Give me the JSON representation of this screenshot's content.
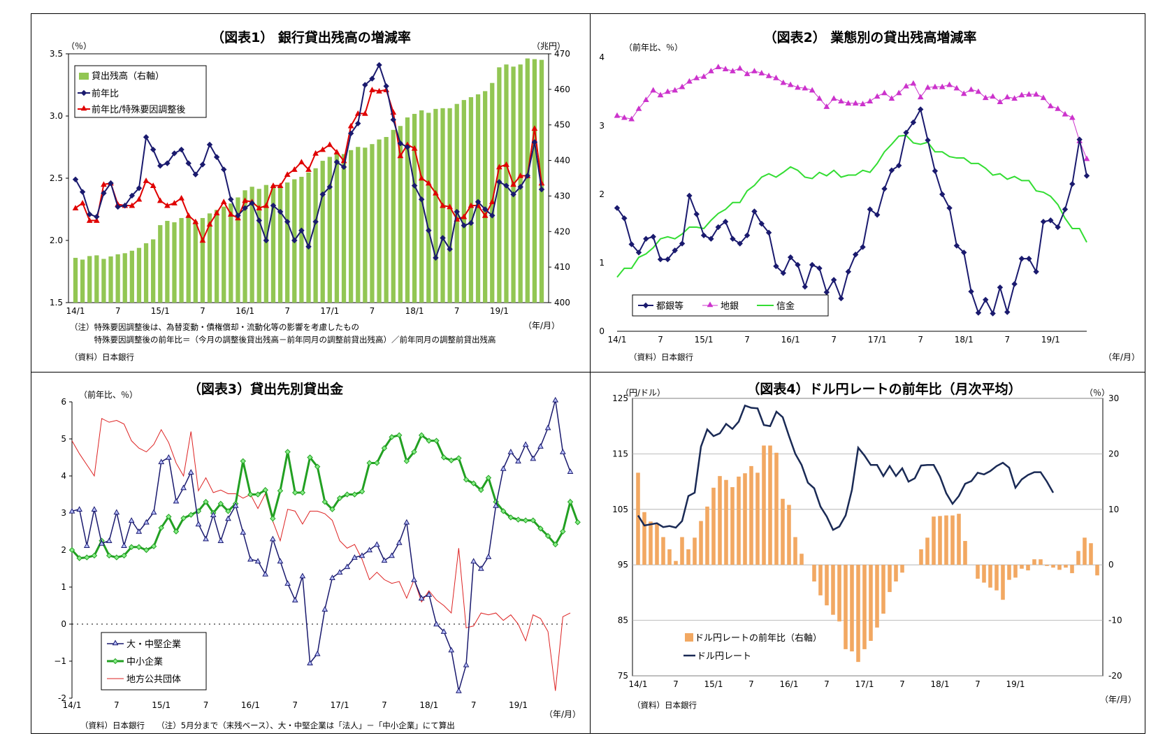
{
  "xaxis": {
    "labels_p1": [
      "14/1",
      "7",
      "15/1",
      "7",
      "16/1",
      "7",
      "17/1",
      "7",
      "18/1",
      "7",
      "19/1"
    ],
    "labels": [
      "14/1",
      "7",
      "15/1",
      "7",
      "16/1",
      "7",
      "17/1",
      "7",
      "18/1",
      "7",
      "19/1"
    ],
    "unit": "（年/月）"
  },
  "chart_data": [
    {
      "type": "bar+line",
      "title": "（図表1）  銀行貸出残高の増減率",
      "left_unit": "（％）",
      "right_unit": "（兆円）",
      "x_start": "2014-01",
      "ylim_left": [
        1.5,
        3.5
      ],
      "ylim_right": [
        400,
        470
      ],
      "yticks_left": [
        "1.5",
        "2.0",
        "2.5",
        "3.0",
        "3.5"
      ],
      "yticks_right": [
        "400",
        "410",
        "420",
        "430",
        "440",
        "450",
        "460",
        "470"
      ],
      "series": [
        {
          "name": "貸出残高（右軸）",
          "axis": "right",
          "kind": "bar",
          "values": [
            412.6,
            412.1,
            413.1,
            413.3,
            412.3,
            413.0,
            413.6,
            413.9,
            414.6,
            415.4,
            416.7,
            417.8,
            421.8,
            423.0,
            422.6,
            423.8,
            424.2,
            422.9,
            423.8,
            425.1,
            426.1,
            427.0,
            427.9,
            429.6,
            431.6,
            432.6,
            432.0,
            433.1,
            433.0,
            432.6,
            433.8,
            434.7,
            435.4,
            436.6,
            437.8,
            439.9,
            441.0,
            442.0,
            441.8,
            442.9,
            443.8,
            443.6,
            444.6,
            445.9,
            446.6,
            448.6,
            449.7,
            452.1,
            453.1,
            454.1,
            453.4,
            454.5,
            454.7,
            454.7,
            455.9,
            457.0,
            457.8,
            458.6,
            459.5,
            461.8,
            466.2,
            467.0,
            466.4,
            467.0,
            468.7,
            468.5,
            468.3
          ]
        },
        {
          "name": "前年比",
          "axis": "left",
          "kind": "line",
          "values": [
            2.49,
            2.39,
            2.21,
            2.19,
            2.38,
            2.46,
            2.27,
            2.28,
            2.36,
            2.42,
            2.83,
            2.73,
            2.6,
            2.62,
            2.7,
            2.73,
            2.62,
            2.53,
            2.61,
            2.77,
            2.67,
            2.57,
            2.33,
            2.2,
            2.26,
            2.3,
            2.16,
            2.0,
            2.28,
            2.23,
            2.15,
            2.0,
            2.08,
            1.95,
            2.15,
            2.37,
            2.43,
            2.63,
            2.59,
            2.86,
            2.94,
            3.25,
            3.3,
            3.41,
            3.24,
            2.97,
            2.78,
            2.75,
            2.44,
            2.33,
            2.08,
            1.86,
            2.02,
            1.93,
            2.23,
            2.12,
            2.14,
            2.31,
            2.25,
            2.2,
            2.47,
            2.44,
            2.37,
            2.43,
            2.52,
            2.79,
            2.41
          ]
        },
        {
          "name": "前年比/特殊要因調整後",
          "axis": "left",
          "kind": "line",
          "values": [
            2.26,
            2.3,
            2.16,
            2.16,
            2.45,
            2.46,
            2.29,
            2.28,
            2.28,
            2.33,
            2.48,
            2.44,
            2.32,
            2.28,
            2.3,
            2.34,
            2.2,
            2.15,
            2.0,
            2.13,
            2.22,
            2.31,
            2.21,
            2.18,
            2.32,
            2.31,
            2.26,
            2.28,
            2.44,
            2.44,
            2.53,
            2.57,
            2.63,
            2.57,
            2.7,
            2.73,
            2.77,
            2.71,
            2.64,
            2.92,
            3.02,
            3.02,
            3.21,
            3.2,
            3.21,
            3.03,
            2.68,
            2.77,
            2.74,
            2.5,
            2.46,
            2.38,
            2.28,
            2.27,
            2.17,
            2.19,
            2.28,
            2.28,
            2.2,
            2.31,
            2.59,
            2.61,
            2.45,
            2.52,
            2.52,
            2.9,
            2.46
          ]
        }
      ],
      "notes": [
        "（注）特殊要因調整後は、為替変動・債権償却・流動化等の影響を考慮したもの",
        "　　　特殊要因調整後の前年比＝（今月の調整後貸出残高－前年同月の調整前貸出残高）／前年同月の調整前貸出残高",
        "（資料）日本銀行"
      ]
    },
    {
      "type": "line",
      "title": "（図表2）  業態別の貸出残高増減率",
      "left_unit": "（前年比、％）",
      "x_start": "2014-01",
      "ylim": [
        0,
        4
      ],
      "yticks": [
        "0",
        "1",
        "2",
        "3",
        "4"
      ],
      "series": [
        {
          "name": "都銀等",
          "values": [
            1.8,
            1.65,
            1.27,
            1.15,
            1.35,
            1.38,
            1.05,
            1.05,
            1.18,
            1.28,
            1.98,
            1.71,
            1.4,
            1.35,
            1.52,
            1.6,
            1.35,
            1.28,
            1.4,
            1.75,
            1.57,
            1.44,
            0.95,
            0.85,
            1.08,
            0.97,
            0.65,
            0.97,
            0.92,
            0.57,
            0.75,
            0.48,
            0.87,
            1.12,
            1.23,
            1.78,
            1.7,
            2.08,
            2.35,
            2.42,
            2.9,
            3.05,
            3.24,
            2.79,
            2.34,
            2.0,
            1.8,
            1.25,
            1.15,
            0.58,
            0.27,
            0.46,
            0.26,
            0.64,
            0.28,
            0.69,
            1.06,
            1.06,
            0.87,
            1.6,
            1.62,
            1.52,
            1.78,
            2.15,
            2.8,
            2.27
          ]
        },
        {
          "name": "地銀",
          "values": [
            3.15,
            3.12,
            3.1,
            3.25,
            3.38,
            3.52,
            3.45,
            3.5,
            3.52,
            3.57,
            3.65,
            3.7,
            3.72,
            3.8,
            3.86,
            3.83,
            3.8,
            3.84,
            3.76,
            3.8,
            3.77,
            3.73,
            3.7,
            3.63,
            3.6,
            3.56,
            3.55,
            3.52,
            3.4,
            3.28,
            3.4,
            3.36,
            3.33,
            3.33,
            3.32,
            3.36,
            3.43,
            3.48,
            3.4,
            3.48,
            3.58,
            3.62,
            3.42,
            3.56,
            3.57,
            3.57,
            3.6,
            3.55,
            3.47,
            3.53,
            3.5,
            3.41,
            3.43,
            3.35,
            3.42,
            3.4,
            3.45,
            3.46,
            3.46,
            3.41,
            3.29,
            3.25,
            3.17,
            3.12,
            2.78,
            2.52
          ]
        },
        {
          "name": "信金",
          "values": [
            0.79,
            0.92,
            0.92,
            1.08,
            1.13,
            1.22,
            1.35,
            1.38,
            1.35,
            1.42,
            1.52,
            1.52,
            1.5,
            1.62,
            1.72,
            1.78,
            1.88,
            1.88,
            2.05,
            2.13,
            2.25,
            2.3,
            2.25,
            2.32,
            2.4,
            2.35,
            2.25,
            2.23,
            2.32,
            2.27,
            2.35,
            2.25,
            2.28,
            2.28,
            2.35,
            2.32,
            2.45,
            2.62,
            2.73,
            2.85,
            2.86,
            2.75,
            2.73,
            2.76,
            2.62,
            2.62,
            2.55,
            2.53,
            2.53,
            2.45,
            2.45,
            2.38,
            2.28,
            2.3,
            2.22,
            2.26,
            2.2,
            2.2,
            2.05,
            2.03,
            1.97,
            1.85,
            1.65,
            1.5,
            1.5,
            1.3
          ]
        }
      ],
      "notes": [
        "（資料）日本銀行"
      ]
    },
    {
      "type": "line",
      "title": "（図表3）貸出先別貸出金",
      "left_unit": "（前年比、％）",
      "x_start": "2014-01",
      "ylim": [
        -2,
        6
      ],
      "yticks": [
        "-2",
        "−1",
        "0",
        "1",
        "2",
        "3",
        "4",
        "5",
        "6"
      ],
      "series": [
        {
          "name": "大・中堅企業",
          "values": [
            3.05,
            3.1,
            2.12,
            3.1,
            2.18,
            2.25,
            3.02,
            2.12,
            2.8,
            2.5,
            2.75,
            3.02,
            4.38,
            4.5,
            3.32,
            3.68,
            4.1,
            2.7,
            2.3,
            2.95,
            2.25,
            2.85,
            3.2,
            2.48,
            1.75,
            1.7,
            1.35,
            2.3,
            1.7,
            1.1,
            0.65,
            1.3,
            -1.05,
            -0.8,
            0.4,
            1.25,
            1.4,
            1.55,
            1.8,
            1.85,
            2.0,
            2.15,
            1.72,
            1.85,
            2.2,
            2.75,
            1.2,
            0.7,
            0.8,
            0.0,
            -0.2,
            -0.7,
            -1.8,
            -1.1,
            1.7,
            1.5,
            1.82,
            3.2,
            4.2,
            4.65,
            4.4,
            4.85,
            4.47,
            4.8,
            5.3,
            6.05,
            4.65,
            4.12
          ]
        },
        {
          "name": "中小企業",
          "values": [
            2.0,
            1.78,
            1.8,
            1.85,
            2.25,
            1.85,
            1.8,
            1.85,
            2.08,
            2.08,
            2.0,
            2.1,
            2.6,
            2.9,
            2.5,
            2.86,
            2.95,
            3.05,
            3.3,
            3.0,
            3.25,
            3.05,
            3.25,
            4.4,
            3.5,
            3.5,
            3.62,
            2.85,
            3.6,
            4.65,
            3.55,
            3.55,
            4.5,
            4.25,
            3.3,
            3.1,
            3.4,
            3.5,
            3.5,
            3.58,
            4.35,
            4.35,
            4.75,
            5.05,
            5.1,
            4.4,
            4.65,
            5.1,
            4.95,
            4.95,
            4.5,
            4.42,
            4.48,
            3.9,
            3.8,
            3.62,
            3.95,
            3.3,
            3.05,
            2.88,
            2.82,
            2.8,
            2.8,
            2.58,
            2.38,
            2.15,
            2.5,
            3.3,
            2.75
          ]
        },
        {
          "name": "地方公共団体",
          "values": [
            4.95,
            4.6,
            4.3,
            4.0,
            5.55,
            5.45,
            5.5,
            5.4,
            4.95,
            4.75,
            4.65,
            4.85,
            5.25,
            4.9,
            4.35,
            4.0,
            5.2,
            3.6,
            3.95,
            3.55,
            3.62,
            3.52,
            3.52,
            3.4,
            3.5,
            3.12,
            3.52,
            2.78,
            2.25,
            3.1,
            3.05,
            2.7,
            3.05,
            3.05,
            2.98,
            2.8,
            2.25,
            2.05,
            2.15,
            1.75,
            1.2,
            1.4,
            1.2,
            1.1,
            1.15,
            0.7,
            1.2,
            0.6,
            0.9,
            0.65,
            0.5,
            0.3,
            2.05,
            -0.1,
            -0.05,
            0.3,
            0.25,
            0.3,
            0.1,
            0.25,
            0.0,
            -0.45,
            0.25,
            0.15,
            -0.2,
            -1.8,
            0.2,
            0.3
          ]
        }
      ],
      "notes": [
        "（資料）日本銀行　　（注）5月分まで（末残ベース）、大・中堅企業は「法人」－「中小企業」にて算出"
      ]
    },
    {
      "type": "bar+line",
      "title": "（図表4）ドル円レートの前年比（月次平均）",
      "left_unit": "（円/ドル）",
      "right_unit": "（％）",
      "x_start": "2014-01",
      "ylim_left": [
        75,
        125
      ],
      "ylim_right": [
        -20,
        30
      ],
      "yticks_left": [
        "75",
        "85",
        "95",
        "105",
        "115",
        "125"
      ],
      "yticks_right": [
        "-20",
        "-10",
        "0",
        "10",
        "20",
        "30"
      ],
      "series": [
        {
          "name": "ドル円レートの前年比（右軸）",
          "axis": "right",
          "kind": "bar",
          "values": [
            16.6,
            9.5,
            7.8,
            7.5,
            5.0,
            2.8,
            0.7,
            5.0,
            2.8,
            4.9,
            7.9,
            10.5,
            13.9,
            16.0,
            15.3,
            14.0,
            15.9,
            16.5,
            17.8,
            16.6,
            21.5,
            21.5,
            20.2,
            11.9,
            10.8,
            5.0,
            2.0,
            0.0,
            -3.0,
            -5.5,
            -7.3,
            -9.0,
            -10.2,
            -15.2,
            -15.6,
            -17.5,
            -15.2,
            -13.7,
            -11.3,
            -8.8,
            -4.9,
            -3.0,
            -1.4,
            0.0,
            0.0,
            2.8,
            4.9,
            8.7,
            8.8,
            8.9,
            8.9,
            9.2,
            4.3,
            0.0,
            -2.5,
            -3.2,
            -4.1,
            -4.6,
            -6.3,
            -2.7,
            -2.3,
            -0.7,
            -1.0,
            1.0,
            1.0,
            -0.2,
            -0.5,
            -0.9,
            -0.5,
            -1.5,
            2.5,
            4.9,
            3.9,
            -1.9
          ]
        },
        {
          "name": "ドル円レート",
          "axis": "left",
          "kind": "line",
          "values": [
            103.9,
            102.1,
            102.3,
            102.5,
            101.8,
            102.0,
            101.7,
            102.9,
            107.4,
            108.0,
            116.3,
            119.4,
            118.2,
            118.7,
            120.4,
            119.5,
            120.8,
            123.7,
            123.3,
            123.2,
            120.2,
            120.0,
            122.6,
            121.6,
            118.2,
            115.0,
            113.0,
            109.8,
            108.8,
            105.5,
            103.7,
            101.3,
            101.9,
            103.9,
            108.5,
            116.1,
            114.7,
            113.0,
            113.0,
            111.0,
            112.8,
            111.0,
            112.4,
            110.0,
            110.6,
            112.9,
            113.0,
            113.0,
            110.9,
            107.9,
            106.0,
            107.4,
            109.6,
            110.1,
            111.6,
            111.3,
            111.9,
            112.8,
            113.4,
            112.5,
            108.9,
            110.4,
            111.2,
            111.7,
            111.7,
            110.0,
            108.0
          ]
        }
      ],
      "notes": [
        "（資料）日本銀行"
      ]
    }
  ]
}
